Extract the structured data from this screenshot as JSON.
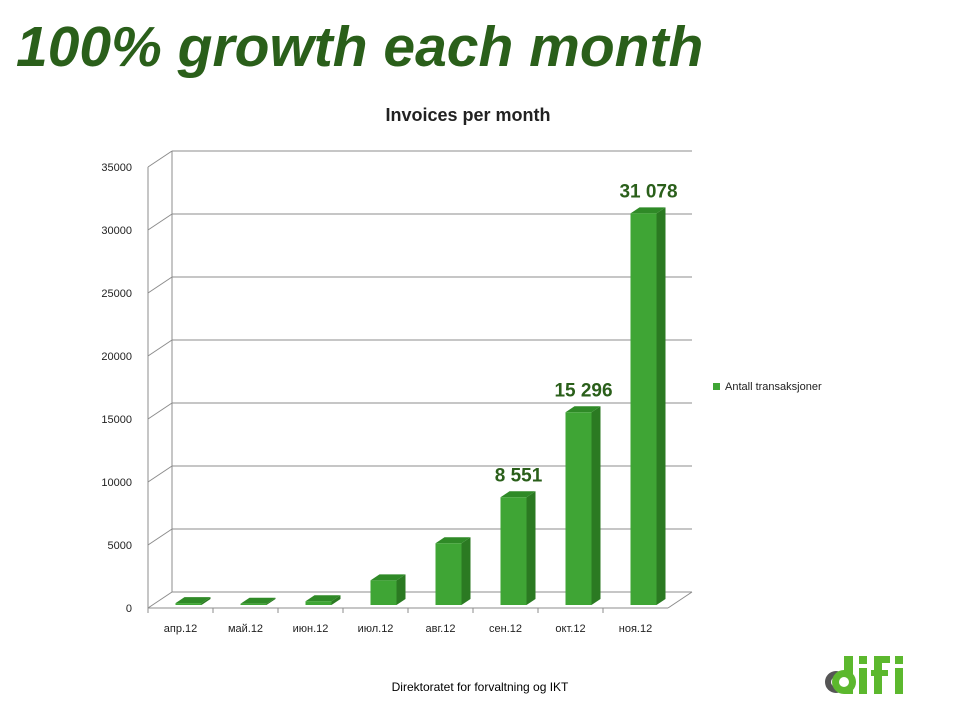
{
  "slide": {
    "title": "100% growth each month",
    "footer": "Direktoratet for forvaltning og IKT",
    "logo_text": "difi"
  },
  "colors": {
    "title": "#2a5f1a",
    "bar_front": "#3fa535",
    "bar_side": "#2b7a22",
    "bar_top": "#2f8a27",
    "label": "#2a5f1a"
  },
  "chart_data": {
    "type": "bar",
    "title": "Invoices per month",
    "categories": [
      "апр.12",
      "май.12",
      "июн.12",
      "июл.12",
      "авг.12",
      "сен.12",
      "окт.12",
      "ноя.12"
    ],
    "series": [
      {
        "name": "Antall transaksjoner",
        "values": [
          150,
          100,
          300,
          1950,
          4900,
          8551,
          15296,
          31078
        ]
      }
    ],
    "data_labels": [
      "",
      "",
      "",
      "",
      "",
      "8 551",
      "15 296",
      "31 078"
    ],
    "yticks": [
      "0",
      "5000",
      "10000",
      "15000",
      "20000",
      "25000",
      "30000",
      "35000"
    ],
    "ylim": [
      0,
      35000
    ],
    "grid": true,
    "legend_position": "right"
  }
}
